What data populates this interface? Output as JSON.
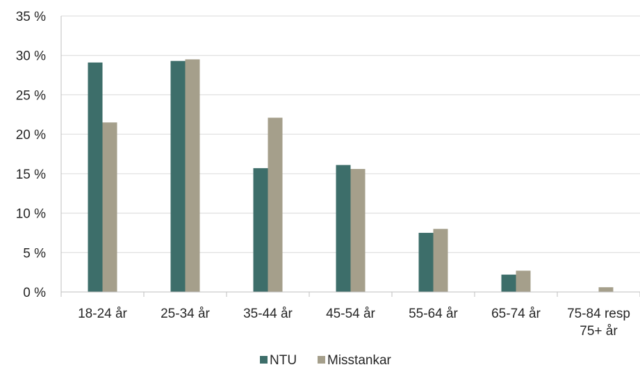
{
  "chart_data": {
    "type": "bar",
    "categories": [
      [
        "18-24 år"
      ],
      [
        "25-34 år"
      ],
      [
        "35-44 år"
      ],
      [
        "45-54 år"
      ],
      [
        "55-64 år"
      ],
      [
        "65-74 år"
      ],
      [
        "75-84 resp",
        "75+ år"
      ]
    ],
    "series": [
      {
        "name": "NTU",
        "color": "#3d6e6a",
        "values": [
          29.1,
          29.3,
          15.7,
          16.1,
          7.5,
          2.2,
          0.0
        ]
      },
      {
        "name": "Misstankar",
        "color": "#a59f8b",
        "values": [
          21.5,
          29.5,
          22.1,
          15.6,
          8.0,
          2.7,
          0.6
        ]
      }
    ],
    "ylim": [
      0,
      35
    ],
    "yticks": [
      0,
      5,
      10,
      15,
      20,
      25,
      30,
      35
    ],
    "ytick_labels": [
      "0 %",
      "5 %",
      "10 %",
      "15 %",
      "20 %",
      "25 %",
      "30 %",
      "35 %"
    ],
    "grid": true,
    "legend_position": "bottom"
  }
}
